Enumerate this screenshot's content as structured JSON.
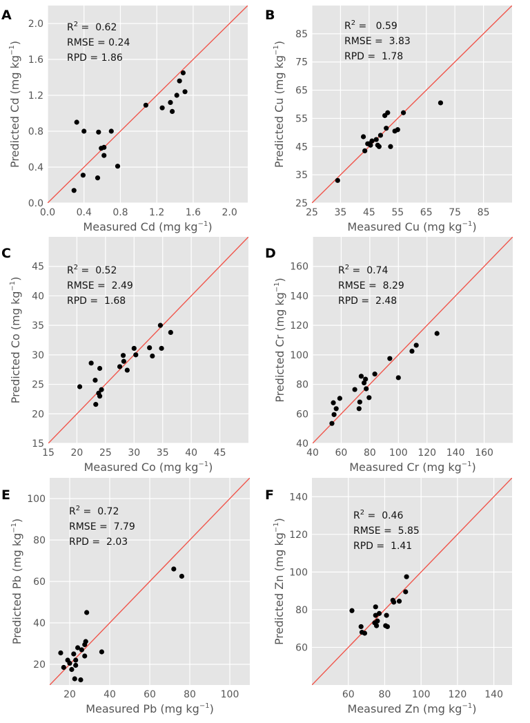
{
  "chart_data": [
    {
      "type": "scatter",
      "panel": "A",
      "element": "Cd",
      "xlabel": "Measured Cd (mg kg",
      "ylabel": "Predicted Cd (mg kg",
      "label_tail": ")",
      "unit_exponent": "−1",
      "xlim": [
        0,
        2.2
      ],
      "ylim": [
        0,
        2.2
      ],
      "xticks": [
        0,
        0.4,
        0.8,
        1.2,
        1.6,
        2.0
      ],
      "yticks": [
        0,
        0.4,
        0.8,
        1.2,
        1.6,
        2.0
      ],
      "xtick_labels": [
        "0.0",
        "0.4",
        "0.8",
        "1.2",
        "1.6",
        "2.0"
      ],
      "ytick_labels": [
        "0.0",
        "0.4",
        "0.8",
        "1.2",
        "1.6",
        "2.0"
      ],
      "stats": [
        {
          "label": "R",
          "sup": "2",
          "eq": " =  ",
          "value": "0.62"
        },
        {
          "label": "RMSE",
          "sup": "",
          "eq": " = ",
          "value": "0.24"
        },
        {
          "label": "RPD",
          "sup": "",
          "eq": " = ",
          "value": "1.86"
        }
      ],
      "points": [
        [
          0.29,
          0.14
        ],
        [
          0.32,
          0.9
        ],
        [
          0.39,
          0.31
        ],
        [
          0.4,
          0.8
        ],
        [
          0.55,
          0.28
        ],
        [
          0.56,
          0.79
        ],
        [
          0.59,
          0.61
        ],
        [
          0.62,
          0.62
        ],
        [
          0.62,
          0.53
        ],
        [
          0.7,
          0.8
        ],
        [
          0.77,
          0.41
        ],
        [
          1.08,
          1.09
        ],
        [
          1.26,
          1.06
        ],
        [
          1.35,
          1.12
        ],
        [
          1.37,
          1.02
        ],
        [
          1.42,
          1.2
        ],
        [
          1.45,
          1.36
        ],
        [
          1.49,
          1.45
        ],
        [
          1.51,
          1.24
        ]
      ]
    },
    {
      "type": "scatter",
      "panel": "B",
      "element": "Cu",
      "xlabel": "Measured Cu (mg kg",
      "ylabel": "Predicted Cu (mg kg",
      "label_tail": ")",
      "unit_exponent": "−1",
      "xlim": [
        25,
        95
      ],
      "ylim": [
        25,
        95
      ],
      "xticks": [
        25,
        35,
        45,
        55,
        65,
        75,
        85
      ],
      "yticks": [
        25,
        35,
        45,
        55,
        65,
        75,
        85
      ],
      "xtick_labels": [
        "25",
        "35",
        "45",
        "55",
        "65",
        "75",
        "85"
      ],
      "ytick_labels": [
        "25",
        "35",
        "45",
        "55",
        "65",
        "75",
        "85"
      ],
      "stats": [
        {
          "label": "R",
          "sup": "2",
          "eq": " =   ",
          "value": "0.59"
        },
        {
          "label": "RMSE",
          "sup": "",
          "eq": " =  ",
          "value": "3.83"
        },
        {
          "label": "RPD",
          "sup": "",
          "eq": " =  ",
          "value": "1.78"
        }
      ],
      "points": [
        [
          34,
          33
        ],
        [
          43,
          48.5
        ],
        [
          43.5,
          43.5
        ],
        [
          44.5,
          46
        ],
        [
          45,
          46
        ],
        [
          45.5,
          45.5
        ],
        [
          46,
          47
        ],
        [
          47.5,
          47.5
        ],
        [
          48,
          45.5
        ],
        [
          48.5,
          45
        ],
        [
          49,
          49
        ],
        [
          50.5,
          56
        ],
        [
          51,
          51.5
        ],
        [
          51.5,
          57
        ],
        [
          52.5,
          45
        ],
        [
          54,
          50.5
        ],
        [
          55,
          51
        ],
        [
          57,
          57
        ],
        [
          70,
          60.5
        ]
      ]
    },
    {
      "type": "scatter",
      "panel": "C",
      "element": "Co",
      "xlabel": "Measured Co (mg kg",
      "ylabel": "Predicted Co (mg kg",
      "label_tail": ")",
      "unit_exponent": "−1",
      "xlim": [
        15,
        50
      ],
      "ylim": [
        15,
        50
      ],
      "xticks": [
        15,
        20,
        25,
        30,
        35,
        40,
        45
      ],
      "yticks": [
        15,
        20,
        25,
        30,
        35,
        40,
        45
      ],
      "xtick_labels": [
        "15",
        "20",
        "25",
        "30",
        "35",
        "40",
        "45"
      ],
      "ytick_labels": [
        "15",
        "20",
        "25",
        "30",
        "35",
        "40",
        "45"
      ],
      "stats": [
        {
          "label": "R",
          "sup": "2",
          "eq": " =  ",
          "value": "0.52"
        },
        {
          "label": "RMSE",
          "sup": "",
          "eq": " =  ",
          "value": "2.49"
        },
        {
          "label": "RPD",
          "sup": "",
          "eq": " =  ",
          "value": "1.68"
        }
      ],
      "points": [
        [
          20.5,
          24.6
        ],
        [
          22.5,
          28.6
        ],
        [
          23.2,
          25.7
        ],
        [
          23.3,
          21.6
        ],
        [
          23.8,
          23.5
        ],
        [
          24,
          23
        ],
        [
          24,
          27.7
        ],
        [
          24.3,
          24.1
        ],
        [
          27.5,
          28
        ],
        [
          28.1,
          29.9
        ],
        [
          28.2,
          28.9
        ],
        [
          28.8,
          27.4
        ],
        [
          30,
          31.1
        ],
        [
          30.3,
          30
        ],
        [
          32.7,
          31.2
        ],
        [
          33.2,
          29.8
        ],
        [
          34.6,
          35
        ],
        [
          34.8,
          31.1
        ],
        [
          36.4,
          33.8
        ]
      ]
    },
    {
      "type": "scatter",
      "panel": "D",
      "element": "Cr",
      "xlabel": "Measured Cr (mg kg",
      "ylabel": "Predicted Cr (mg kg",
      "label_tail": ")",
      "unit_exponent": "−1",
      "xlim": [
        40,
        180
      ],
      "ylim": [
        40,
        180
      ],
      "xticks": [
        40,
        60,
        80,
        100,
        120,
        140,
        160
      ],
      "yticks": [
        40,
        60,
        80,
        100,
        120,
        140,
        160
      ],
      "xtick_labels": [
        "40",
        "60",
        "80",
        "100",
        "120",
        "140",
        "160"
      ],
      "ytick_labels": [
        "40",
        "60",
        "80",
        "100",
        "120",
        "140",
        "160"
      ],
      "stats": [
        {
          "label": "R",
          "sup": "2",
          "eq": " =  ",
          "value": "0.74"
        },
        {
          "label": "RMSE",
          "sup": "",
          "eq": " =  ",
          "value": "8.29"
        },
        {
          "label": "RPD",
          "sup": "",
          "eq": " =  ",
          "value": "2.48"
        }
      ],
      "points": [
        [
          53.5,
          53.5
        ],
        [
          54.5,
          67.5
        ],
        [
          55,
          59.5
        ],
        [
          56.5,
          63.5
        ],
        [
          59,
          70.5
        ],
        [
          69.5,
          76.5
        ],
        [
          72.5,
          63.5
        ],
        [
          73,
          68
        ],
        [
          74,
          85.5
        ],
        [
          76,
          81
        ],
        [
          77,
          83.5
        ],
        [
          77.5,
          77
        ],
        [
          79.5,
          71
        ],
        [
          83.5,
          87
        ],
        [
          94,
          97.5
        ],
        [
          100,
          84.5
        ],
        [
          109.5,
          102.5
        ],
        [
          112.5,
          106.5
        ],
        [
          127,
          114.5
        ]
      ]
    },
    {
      "type": "scatter",
      "panel": "E",
      "element": "Pb",
      "xlabel": "Measured Pb (mg kg",
      "ylabel": "Predicted Pb (mg kg",
      "label_tail": ")",
      "unit_exponent": "−1",
      "xlim": [
        10,
        110
      ],
      "ylim": [
        10,
        110
      ],
      "xticks": [
        20,
        40,
        60,
        80,
        100
      ],
      "yticks": [
        20,
        40,
        60,
        80,
        100
      ],
      "xtick_labels": [
        "20",
        "40",
        "60",
        "80",
        "100"
      ],
      "ytick_labels": [
        "20",
        "40",
        "60",
        "80",
        "100"
      ],
      "stats": [
        {
          "label": "R",
          "sup": "2",
          "eq": " =  ",
          "value": "0.72"
        },
        {
          "label": "RMSE",
          "sup": "",
          "eq": " =  ",
          "value": "7.79"
        },
        {
          "label": "RPD",
          "sup": "",
          "eq": " =  ",
          "value": "2.03"
        }
      ],
      "points": [
        [
          15.5,
          25.5
        ],
        [
          17,
          18.5
        ],
        [
          19,
          22
        ],
        [
          20,
          20.5
        ],
        [
          21,
          17.5
        ],
        [
          22,
          25
        ],
        [
          22.5,
          13
        ],
        [
          23,
          22
        ],
        [
          23,
          19.5
        ],
        [
          24,
          28
        ],
        [
          25.5,
          12.5
        ],
        [
          26,
          27
        ],
        [
          27.5,
          24
        ],
        [
          27.5,
          29.5
        ],
        [
          28,
          31
        ],
        [
          28.5,
          45
        ],
        [
          36,
          26
        ],
        [
          72,
          66
        ],
        [
          76,
          62.5
        ]
      ]
    },
    {
      "type": "scatter",
      "panel": "F",
      "element": "Zn",
      "xlabel": "Measured Zn (mg kg",
      "ylabel": "Predicted Zn (mg kg",
      "label_tail": ")",
      "unit_exponent": "−1",
      "xlim": [
        40,
        150
      ],
      "ylim": [
        40,
        150
      ],
      "xticks": [
        60,
        80,
        100,
        120,
        140
      ],
      "yticks": [
        60,
        80,
        100,
        120,
        140
      ],
      "xtick_labels": [
        "60",
        "80",
        "100",
        "120",
        "140"
      ],
      "ytick_labels": [
        "60",
        "80",
        "100",
        "120",
        "140"
      ],
      "stats": [
        {
          "label": "R",
          "sup": "2",
          "eq": " =  ",
          "value": "0.46"
        },
        {
          "label": "RMSE",
          "sup": "",
          "eq": " =  ",
          "value": "5.85"
        },
        {
          "label": "RPD",
          "sup": "",
          "eq": " =  ",
          "value": "1.41"
        }
      ],
      "points": [
        [
          62,
          79.5
        ],
        [
          67,
          71
        ],
        [
          67.5,
          68
        ],
        [
          69,
          67.5
        ],
        [
          74.5,
          73
        ],
        [
          75,
          77
        ],
        [
          75,
          81.5
        ],
        [
          75.5,
          71.5
        ],
        [
          76,
          74
        ],
        [
          77,
          78
        ],
        [
          80.5,
          71.5
        ],
        [
          81,
          77
        ],
        [
          81.5,
          71
        ],
        [
          84.5,
          85
        ],
        [
          85,
          84
        ],
        [
          88,
          84.5
        ],
        [
          91.5,
          89.5
        ],
        [
          92,
          97.5
        ]
      ]
    }
  ]
}
